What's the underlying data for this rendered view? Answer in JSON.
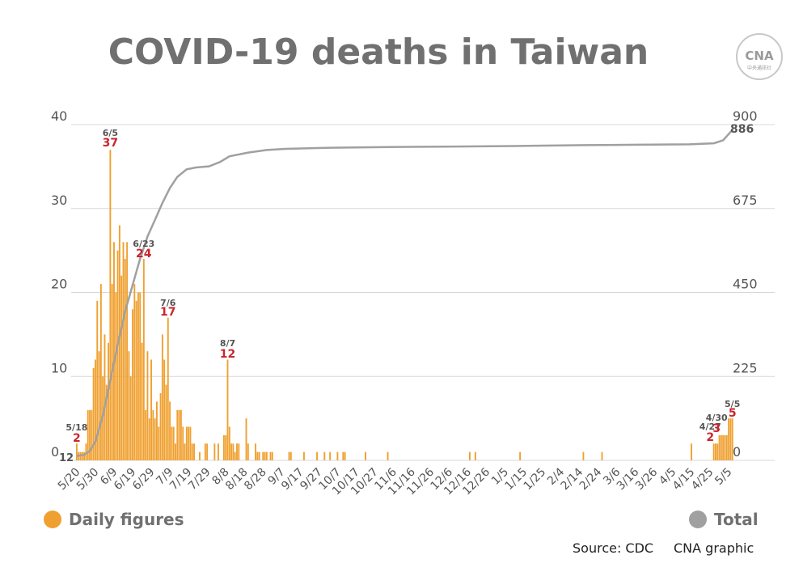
{
  "chart_data": {
    "type": "bar",
    "title": "COVID-19 deaths in Taiwan",
    "colors": {
      "daily": "#f0a030",
      "total": "#a0a0a0",
      "annotation": "#c9252c",
      "grid": "#d8d8d8"
    },
    "y_left": {
      "ylim": [
        0,
        40
      ],
      "ticks": [
        "0",
        "10",
        "20",
        "30",
        "40"
      ]
    },
    "y_right": {
      "ylim": [
        0,
        900
      ],
      "ticks": [
        "0",
        "225",
        "450",
        "675",
        "900"
      ]
    },
    "x_ticks": [
      "5/20",
      "5/30",
      "6/9",
      "6/19",
      "6/29",
      "7/9",
      "7/19",
      "7/29",
      "8/8",
      "8/18",
      "8/28",
      "9/7",
      "9/17",
      "9/27",
      "10/7",
      "10/17",
      "10/27",
      "11/6",
      "11/16",
      "11/26",
      "12/6",
      "12/16",
      "12/26",
      "1/5",
      "1/15",
      "1/25",
      "2/4",
      "2/14",
      "2/24",
      "3/6",
      "3/16",
      "3/26",
      "4/5",
      "4/15",
      "4/25",
      "5/5"
    ],
    "x_range": [
      "2021-05-15",
      "2022-05-06"
    ],
    "series": [
      {
        "name": "Daily figures",
        "type": "bar",
        "points": [
          [
            "2021-05-18",
            2
          ],
          [
            "2021-05-19",
            1
          ],
          [
            "2021-05-20",
            1
          ],
          [
            "2021-05-21",
            1
          ],
          [
            "2021-05-22",
            1
          ],
          [
            "2021-05-23",
            2
          ],
          [
            "2021-05-24",
            6
          ],
          [
            "2021-05-25",
            6
          ],
          [
            "2021-05-26",
            6
          ],
          [
            "2021-05-27",
            11
          ],
          [
            "2021-05-28",
            12
          ],
          [
            "2021-05-29",
            19
          ],
          [
            "2021-05-30",
            13
          ],
          [
            "2021-05-31",
            21
          ],
          [
            "2021-06-01",
            10
          ],
          [
            "2021-06-02",
            15
          ],
          [
            "2021-06-03",
            9
          ],
          [
            "2021-06-04",
            14
          ],
          [
            "2021-06-05",
            37
          ],
          [
            "2021-06-06",
            21
          ],
          [
            "2021-06-07",
            26
          ],
          [
            "2021-06-08",
            20
          ],
          [
            "2021-06-09",
            25
          ],
          [
            "2021-06-10",
            28
          ],
          [
            "2021-06-11",
            22
          ],
          [
            "2021-06-12",
            26
          ],
          [
            "2021-06-13",
            24
          ],
          [
            "2021-06-14",
            26
          ],
          [
            "2021-06-15",
            13
          ],
          [
            "2021-06-16",
            10
          ],
          [
            "2021-06-17",
            18
          ],
          [
            "2021-06-18",
            21
          ],
          [
            "2021-06-19",
            19
          ],
          [
            "2021-06-20",
            20
          ],
          [
            "2021-06-21",
            20
          ],
          [
            "2021-06-22",
            14
          ],
          [
            "2021-06-23",
            24
          ],
          [
            "2021-06-24",
            6
          ],
          [
            "2021-06-25",
            13
          ],
          [
            "2021-06-26",
            5
          ],
          [
            "2021-06-27",
            12
          ],
          [
            "2021-06-28",
            6
          ],
          [
            "2021-06-29",
            5
          ],
          [
            "2021-06-30",
            7
          ],
          [
            "2021-07-01",
            4
          ],
          [
            "2021-07-02",
            8
          ],
          [
            "2021-07-03",
            15
          ],
          [
            "2021-07-04",
            12
          ],
          [
            "2021-07-05",
            9
          ],
          [
            "2021-07-06",
            17
          ],
          [
            "2021-07-07",
            7
          ],
          [
            "2021-07-08",
            4
          ],
          [
            "2021-07-09",
            4
          ],
          [
            "2021-07-10",
            2
          ],
          [
            "2021-07-11",
            6
          ],
          [
            "2021-07-12",
            6
          ],
          [
            "2021-07-13",
            6
          ],
          [
            "2021-07-14",
            4
          ],
          [
            "2021-07-15",
            2
          ],
          [
            "2021-07-16",
            4
          ],
          [
            "2021-07-17",
            4
          ],
          [
            "2021-07-18",
            4
          ],
          [
            "2021-07-19",
            2
          ],
          [
            "2021-07-20",
            2
          ],
          [
            "2021-07-23",
            1
          ],
          [
            "2021-07-26",
            2
          ],
          [
            "2021-07-27",
            2
          ],
          [
            "2021-07-31",
            2
          ],
          [
            "2021-08-02",
            2
          ],
          [
            "2021-08-05",
            3
          ],
          [
            "2021-08-06",
            3
          ],
          [
            "2021-08-07",
            12
          ],
          [
            "2021-08-08",
            4
          ],
          [
            "2021-08-09",
            2
          ],
          [
            "2021-08-10",
            2
          ],
          [
            "2021-08-11",
            1
          ],
          [
            "2021-08-12",
            2
          ],
          [
            "2021-08-13",
            2
          ],
          [
            "2021-08-17",
            5
          ],
          [
            "2021-08-18",
            2
          ],
          [
            "2021-08-22",
            2
          ],
          [
            "2021-08-23",
            1
          ],
          [
            "2021-08-24",
            1
          ],
          [
            "2021-08-26",
            1
          ],
          [
            "2021-08-27",
            1
          ],
          [
            "2021-08-28",
            1
          ],
          [
            "2021-08-30",
            1
          ],
          [
            "2021-08-31",
            1
          ],
          [
            "2021-09-09",
            1
          ],
          [
            "2021-09-10",
            1
          ],
          [
            "2021-09-17",
            1
          ],
          [
            "2021-09-24",
            1
          ],
          [
            "2021-09-28",
            1
          ],
          [
            "2021-10-01",
            1
          ],
          [
            "2021-10-05",
            1
          ],
          [
            "2021-10-08",
            1
          ],
          [
            "2021-10-09",
            1
          ],
          [
            "2021-10-20",
            1
          ],
          [
            "2021-11-01",
            1
          ],
          [
            "2021-12-15",
            1
          ],
          [
            "2021-12-18",
            1
          ],
          [
            "2022-01-11",
            1
          ],
          [
            "2022-02-14",
            1
          ],
          [
            "2022-02-24",
            1
          ],
          [
            "2022-04-13",
            2
          ],
          [
            "2022-04-25",
            2
          ],
          [
            "2022-04-26",
            2
          ],
          [
            "2022-04-27",
            2
          ],
          [
            "2022-04-28",
            3
          ],
          [
            "2022-04-29",
            3
          ],
          [
            "2022-04-30",
            3
          ],
          [
            "2022-05-01",
            3
          ],
          [
            "2022-05-02",
            3
          ],
          [
            "2022-05-03",
            5
          ],
          [
            "2022-05-04",
            5
          ],
          [
            "2022-05-05",
            5
          ]
        ]
      },
      {
        "name": "Total",
        "type": "line",
        "points": [
          [
            "2021-05-18",
            12
          ],
          [
            "2021-05-22",
            15
          ],
          [
            "2021-05-25",
            25
          ],
          [
            "2021-05-28",
            50
          ],
          [
            "2021-06-01",
            120
          ],
          [
            "2021-06-05",
            215
          ],
          [
            "2021-06-09",
            310
          ],
          [
            "2021-06-13",
            400
          ],
          [
            "2021-06-17",
            470
          ],
          [
            "2021-06-21",
            540
          ],
          [
            "2021-06-25",
            600
          ],
          [
            "2021-06-29",
            645
          ],
          [
            "2021-07-03",
            690
          ],
          [
            "2021-07-07",
            730
          ],
          [
            "2021-07-11",
            760
          ],
          [
            "2021-07-16",
            780
          ],
          [
            "2021-07-21",
            785
          ],
          [
            "2021-07-28",
            788
          ],
          [
            "2021-08-03",
            800
          ],
          [
            "2021-08-08",
            815
          ],
          [
            "2021-08-18",
            825
          ],
          [
            "2021-08-28",
            832
          ],
          [
            "2021-09-07",
            835
          ],
          [
            "2021-10-01",
            838
          ],
          [
            "2021-11-01",
            840
          ],
          [
            "2021-12-01",
            841
          ],
          [
            "2022-01-15",
            843
          ],
          [
            "2022-02-15",
            845
          ],
          [
            "2022-03-15",
            846
          ],
          [
            "2022-04-12",
            847
          ],
          [
            "2022-04-25",
            850
          ],
          [
            "2022-04-30",
            858
          ],
          [
            "2022-05-05",
            886
          ]
        ]
      }
    ],
    "annotations": [
      {
        "date": "2021-05-18",
        "label": "5/18",
        "value": "2"
      },
      {
        "date": "2021-06-05",
        "label": "6/5",
        "value": "37"
      },
      {
        "date": "2021-06-23",
        "label": "6/23",
        "value": "24"
      },
      {
        "date": "2021-07-06",
        "label": "7/6",
        "value": "17"
      },
      {
        "date": "2021-08-07",
        "label": "8/7",
        "value": "12"
      },
      {
        "date": "2022-04-27",
        "label": "4/27",
        "value": "2"
      },
      {
        "date": "2022-04-30",
        "label": "4/30",
        "value": "3"
      },
      {
        "date": "2022-05-05",
        "label": "5/5",
        "value": "5"
      }
    ],
    "total_start_label": "12",
    "total_end_label": "886",
    "legend": [
      {
        "label": "Daily figures",
        "color": "#f0a030"
      },
      {
        "label": "Total",
        "color": "#a0a0a0"
      }
    ]
  },
  "source": "Source: CDC",
  "credit": "CNA graphic",
  "logo": {
    "text": "CNA",
    "sub": "中央通訊社"
  }
}
